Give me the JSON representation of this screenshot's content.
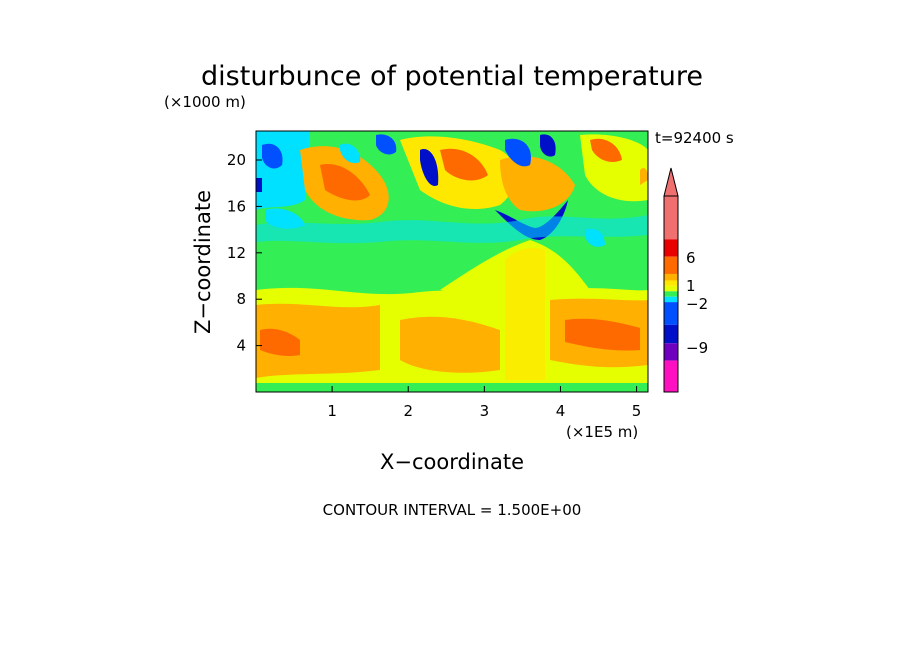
{
  "chart_data": {
    "type": "heatmap",
    "title": "disturbunce of potential temperature",
    "time_label": "t=92400 s",
    "xlabel": "X−coordinate",
    "ylabel": "Z−coordinate",
    "x_unit": "(×1E5 m)",
    "y_unit": "(×1000 m)",
    "xlim": [
      0,
      5.15
    ],
    "ylim": [
      0,
      22.5
    ],
    "x_ticks": [
      "1",
      "2",
      "3",
      "4",
      "5"
    ],
    "y_ticks": [
      "4",
      "8",
      "12",
      "16",
      "20"
    ],
    "colorbar": {
      "labels": [
        "6",
        "1",
        "−2",
        "−9"
      ],
      "colors": [
        "#f06f6f",
        "#e80000",
        "#ff6a00",
        "#ffb000",
        "#ffe800",
        "#e6ff00",
        "#33ee55",
        "#00e0ff",
        "#0050ff",
        "#0010c8",
        "#7000c0",
        "#ff10c0"
      ],
      "extend": "max"
    },
    "footer": "CONTOUR INTERVAL = 1.500E+00"
  }
}
